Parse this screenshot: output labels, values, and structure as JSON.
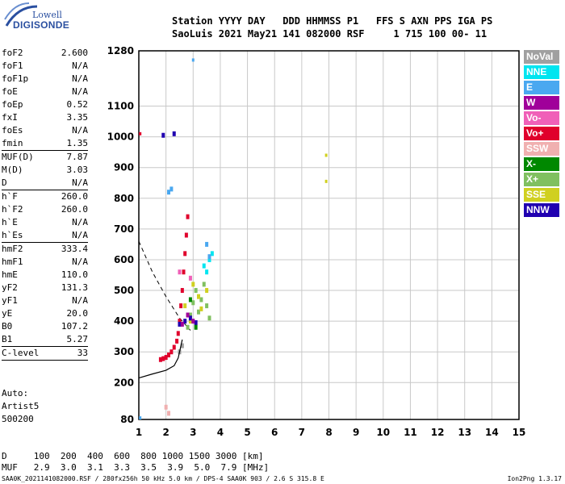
{
  "logo": {
    "top": "Lowell",
    "bottom": "DIGISONDE"
  },
  "header": {
    "line1": "Station YYYY DAY   DDD HHMMSS P1   FFS S AXN PPS IGA PS",
    "line2": "SaoLuis 2021 May21 141 082000 RSF     1 715 100 00- 11"
  },
  "params": [
    {
      "name": "foF2",
      "value": "2.600"
    },
    {
      "name": "foF1",
      "value": "N/A"
    },
    {
      "name": "foF1p",
      "value": "N/A"
    },
    {
      "name": "foE",
      "value": "N/A"
    },
    {
      "name": "foEp",
      "value": "0.52"
    },
    {
      "name": "fxI",
      "value": "3.35"
    },
    {
      "name": "foEs",
      "value": "N/A"
    },
    {
      "name": "fmin",
      "value": "1.35"
    },
    {
      "sep": true
    },
    {
      "name": "MUF(D)",
      "value": "7.87"
    },
    {
      "name": "M(D)",
      "value": "3.03"
    },
    {
      "name": "D",
      "value": "N/A"
    },
    {
      "sep": true
    },
    {
      "name": "h`F",
      "value": "260.0"
    },
    {
      "name": "h`F2",
      "value": "260.0"
    },
    {
      "name": "h`E",
      "value": "N/A"
    },
    {
      "name": "h`Es",
      "value": "N/A"
    },
    {
      "sep": true
    },
    {
      "name": "hmF2",
      "value": "333.4"
    },
    {
      "name": "hmF1",
      "value": "N/A"
    },
    {
      "name": "hmE",
      "value": "110.0"
    },
    {
      "name": "yF2",
      "value": "131.3"
    },
    {
      "name": "yF1",
      "value": "N/A"
    },
    {
      "name": "yE",
      "value": "20.0"
    },
    {
      "name": "B0",
      "value": "107.2"
    },
    {
      "name": "B1",
      "value": "5.27"
    },
    {
      "sep": true
    },
    {
      "name": "C-level",
      "value": "33"
    },
    {
      "sep": true
    }
  ],
  "auto": [
    "Auto:",
    "Artist5",
    "500200"
  ],
  "legend": [
    {
      "label": "NoVal",
      "color": "#a0a0a0"
    },
    {
      "label": "NNE",
      "color": "#00e5f0"
    },
    {
      "label": "E",
      "color": "#4aa8f0"
    },
    {
      "label": "W",
      "color": "#a0009a"
    },
    {
      "label": "Vo-",
      "color": "#f060b8"
    },
    {
      "label": "Vo+",
      "color": "#e0002c"
    },
    {
      "label": "SSW",
      "color": "#f0b0b0"
    },
    {
      "label": "X-",
      "color": "#008800"
    },
    {
      "label": "X+",
      "color": "#80c060"
    },
    {
      "label": "SSE",
      "color": "#d0d020"
    },
    {
      "label": "NNW",
      "color": "#2000b0"
    }
  ],
  "chart_data": {
    "type": "scatter",
    "x_ticks": [
      "1",
      "2",
      "3",
      "4",
      "5",
      "6",
      "7",
      "8",
      "9",
      "10",
      "11",
      "12",
      "13",
      "14",
      "15"
    ],
    "y_ticks": [
      "80",
      "200",
      "300",
      "400",
      "500",
      "600",
      "700",
      "800",
      "900",
      "1000",
      "1100",
      "1280"
    ],
    "xlim": [
      1,
      15
    ],
    "ylim": [
      80,
      1280
    ],
    "grid": true,
    "series": [
      {
        "name": "Vo+",
        "color": "#e0002c",
        "x": [
          1.8,
          1.9,
          2.0,
          2.1,
          2.2,
          2.3,
          2.4,
          2.45,
          2.5,
          2.55,
          2.6,
          2.65,
          2.7,
          2.75,
          2.8
        ],
        "y": [
          275,
          278,
          282,
          290,
          300,
          315,
          335,
          360,
          400,
          450,
          500,
          560,
          620,
          680,
          740
        ]
      },
      {
        "name": "X+",
        "color": "#80c060",
        "x": [
          2.8,
          2.9,
          3.0,
          3.1,
          3.2,
          3.3,
          3.4,
          3.5,
          3.6
        ],
        "y": [
          380,
          420,
          460,
          500,
          430,
          470,
          520,
          450,
          410
        ]
      },
      {
        "name": "SSE",
        "color": "#d0d020",
        "x": [
          2.7,
          2.9,
          3.0,
          3.2,
          3.3,
          3.5
        ],
        "y": [
          450,
          400,
          520,
          480,
          440,
          500
        ]
      },
      {
        "name": "NNE",
        "color": "#00e5f0",
        "x": [
          3.6,
          3.7,
          3.5,
          3.4
        ],
        "y": [
          600,
          620,
          560,
          580
        ]
      },
      {
        "name": "E",
        "color": "#4aa8f0",
        "x": [
          2.1,
          2.2,
          3.5,
          3.6
        ],
        "y": [
          820,
          830,
          650,
          610
        ]
      },
      {
        "name": "NNW",
        "color": "#2000b0",
        "x": [
          2.5,
          2.7,
          2.9,
          3.1,
          1.9,
          2.3
        ],
        "y": [
          390,
          400,
          410,
          395,
          1005,
          1010
        ]
      },
      {
        "name": "W",
        "color": "#a0009a",
        "x": [
          2.6,
          2.8,
          3.0
        ],
        "y": [
          390,
          420,
          400
        ]
      },
      {
        "name": "Vo-",
        "color": "#f060b8",
        "x": [
          2.5,
          2.9
        ],
        "y": [
          560,
          540
        ]
      },
      {
        "name": "SSW",
        "color": "#f0b0b0",
        "x": [
          2.0,
          2.1
        ],
        "y": [
          120,
          100
        ]
      },
      {
        "name": "X-",
        "color": "#008800",
        "x": [
          2.9,
          3.1
        ],
        "y": [
          470,
          380
        ]
      },
      {
        "name": "NoVal",
        "color": "#a0a0a0",
        "x": [
          2.5,
          2.6
        ],
        "y": [
          300,
          320
        ]
      }
    ],
    "sparse_points": [
      {
        "x": 7.9,
        "y": 940,
        "color": "#d0d020"
      },
      {
        "x": 7.9,
        "y": 855,
        "color": "#d0d020"
      },
      {
        "x": 1.05,
        "y": 1010,
        "color": "#e0002c"
      },
      {
        "x": 3.0,
        "y": 1250,
        "color": "#4aa8f0"
      },
      {
        "x": 1.05,
        "y": 85,
        "color": "#4aa8f0"
      },
      {
        "x": 2.0,
        "y": 120,
        "color": "#f0b0b0"
      }
    ],
    "profile_line": {
      "x": [
        1.0,
        1.5,
        2.0,
        2.3,
        2.45,
        2.55,
        2.6
      ],
      "y": [
        215,
        228,
        240,
        255,
        280,
        320,
        340
      ]
    },
    "dashed_line": {
      "x": [
        1.0,
        1.5,
        2.0,
        2.5,
        2.9
      ],
      "y": [
        660,
        560,
        480,
        410,
        370
      ]
    }
  },
  "footer": {
    "d_row": "D     100  200  400  600  800 1000 1500 3000 [km]",
    "muf_row": "MUF   2.9  3.0  3.1  3.3  3.5  3.9  5.0  7.9 [MHz]",
    "filename": "SAA0K_2021141082000.RSF / 280fx256h 50 kHz 5.0 km / DPS-4 SAA0K 903 / 2.6 S 315.8 E",
    "version": "Ion2Png 1.3.17"
  }
}
